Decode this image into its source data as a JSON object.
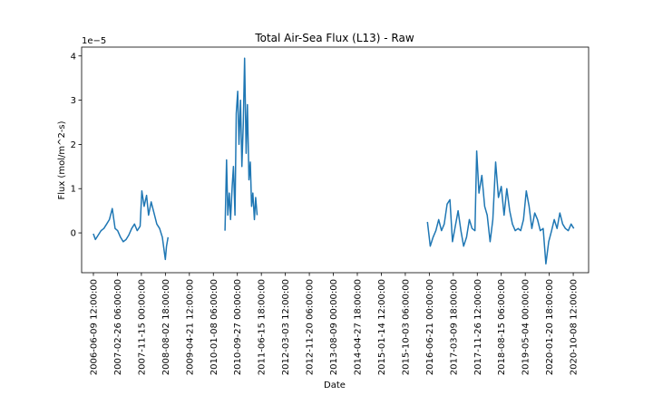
{
  "chart_data": {
    "type": "line",
    "title": "Total Air-Sea Flux (L13) - Raw",
    "xlabel": "Date",
    "ylabel": "Flux (mol/m^2-s)",
    "y_offset_text": "1e−5",
    "y_scale": 1e-05,
    "grid": false,
    "legend": "none",
    "xlim": [
      "2006-02-01",
      "2021-03-25"
    ],
    "ylim": [
      -9e-06,
      4.2e-05
    ],
    "x_ticks": [
      "2006-06-09 12:00:00",
      "2007-02-26 06:00:00",
      "2007-11-15 00:00:00",
      "2008-08-02 18:00:00",
      "2009-04-21 12:00:00",
      "2010-01-08 06:00:00",
      "2010-09-27 00:00:00",
      "2011-06-15 18:00:00",
      "2012-03-03 12:00:00",
      "2012-11-20 06:00:00",
      "2013-08-09 00:00:00",
      "2014-04-27 18:00:00",
      "2015-01-14 12:00:00",
      "2015-10-03 06:00:00",
      "2016-06-21 00:00:00",
      "2017-03-09 18:00:00",
      "2017-11-26 12:00:00",
      "2018-08-15 06:00:00",
      "2019-05-04 00:00:00",
      "2020-01-20 18:00:00",
      "2020-10-08 12:00:00"
    ],
    "y_ticks": [
      0,
      1e-05,
      2e-05,
      3e-05,
      4e-05
    ],
    "y_tick_labels": [
      "0",
      "1",
      "2",
      "3",
      "4"
    ],
    "series": [
      {
        "color": "#1f77b4",
        "segments": [
          {
            "x": [
              "2006-06-09",
              "2006-07-01",
              "2006-08-01",
              "2006-09-01",
              "2006-10-01",
              "2006-11-01",
              "2006-12-01",
              "2007-01-01",
              "2007-02-01",
              "2007-03-01",
              "2007-04-01",
              "2007-05-01",
              "2007-06-01",
              "2007-07-01",
              "2007-08-01",
              "2007-09-01",
              "2007-10-01",
              "2007-11-01",
              "2007-11-20",
              "2007-12-15",
              "2008-01-10",
              "2008-02-01",
              "2008-03-01",
              "2008-04-01",
              "2008-05-01",
              "2008-06-01",
              "2008-07-01",
              "2008-08-02",
              "2008-08-15",
              "2008-09-01"
            ],
            "y": [
              -2e-07,
              -1.5e-06,
              -5e-07,
              5e-07,
              1e-06,
              2e-06,
              3e-06,
              5.5e-06,
              1e-06,
              5e-07,
              -1e-06,
              -2e-06,
              -1.5e-06,
              -5e-07,
              1e-06,
              2e-06,
              5e-07,
              1.5e-06,
              9.5e-06,
              6e-06,
              8.5e-06,
              4e-06,
              7e-06,
              4.5e-06,
              2e-06,
              1e-06,
              -1e-06,
              -6e-06,
              -3e-06,
              -1e-06
            ]
          },
          {
            "x": [
              "2010-05-15",
              "2010-06-01",
              "2010-06-15",
              "2010-07-01",
              "2010-07-15",
              "2010-08-01",
              "2010-08-15",
              "2010-09-01",
              "2010-09-15",
              "2010-10-01",
              "2010-10-15",
              "2010-11-01",
              "2010-11-15",
              "2010-12-01",
              "2010-12-15",
              "2011-01-01",
              "2011-01-15",
              "2011-02-01",
              "2011-02-15",
              "2011-03-01",
              "2011-03-15",
              "2011-04-01",
              "2011-04-15",
              "2011-05-01"
            ],
            "y": [
              5e-07,
              1.65e-05,
              4e-06,
              9e-06,
              3e-06,
              1.05e-05,
              1.5e-05,
              4e-06,
              2.7e-05,
              3.2e-05,
              2e-05,
              3e-05,
              1.5e-05,
              2.5e-05,
              3.95e-05,
              1.8e-05,
              2.9e-05,
              1.2e-05,
              1.6e-05,
              6e-06,
              9e-06,
              3e-06,
              8e-06,
              4e-06
            ]
          },
          {
            "x": [
              "2016-06-01",
              "2016-07-01",
              "2016-08-01",
              "2016-09-01",
              "2016-10-01",
              "2016-11-01",
              "2016-12-01",
              "2017-01-01",
              "2017-02-01",
              "2017-03-01",
              "2017-04-01",
              "2017-05-01",
              "2017-06-01",
              "2017-07-01",
              "2017-08-01",
              "2017-09-01",
              "2017-10-01",
              "2017-11-01",
              "2017-11-20",
              "2017-12-15",
              "2018-01-15",
              "2018-02-15",
              "2018-03-15",
              "2018-04-15",
              "2018-05-15",
              "2018-06-15",
              "2018-07-15",
              "2018-08-15",
              "2018-09-15",
              "2018-10-15",
              "2018-11-15",
              "2018-12-15",
              "2019-01-15",
              "2019-02-15",
              "2019-03-15",
              "2019-04-15",
              "2019-05-15",
              "2019-06-15",
              "2019-07-15",
              "2019-08-15",
              "2019-09-15",
              "2019-10-15",
              "2019-11-15",
              "2019-12-15",
              "2020-01-15",
              "2020-02-15",
              "2020-03-15",
              "2020-04-15",
              "2020-05-15",
              "2020-06-15",
              "2020-07-15",
              "2020-08-15",
              "2020-09-15",
              "2020-10-15"
            ],
            "y": [
              2.5e-06,
              -3e-06,
              -1e-06,
              5e-07,
              3e-06,
              5e-07,
              2e-06,
              6.5e-06,
              7.5e-06,
              -2e-06,
              1.5e-06,
              5e-06,
              5e-07,
              -3e-06,
              -1e-06,
              3e-06,
              1e-06,
              5e-07,
              1.85e-05,
              9e-06,
              1.3e-05,
              6e-06,
              4e-06,
              -2e-06,
              3e-06,
              1.6e-05,
              8e-06,
              1.05e-05,
              4e-06,
              1e-05,
              5e-06,
              2e-06,
              5e-07,
              1e-06,
              5e-07,
              3e-06,
              9.5e-06,
              6e-06,
              1e-06,
              4.5e-06,
              3e-06,
              5e-07,
              1e-06,
              -7e-06,
              -2e-06,
              5e-07,
              3e-06,
              1e-06,
              4.5e-06,
              2e-06,
              1e-06,
              5e-07,
              2e-06,
              1e-06
            ]
          }
        ]
      }
    ]
  }
}
